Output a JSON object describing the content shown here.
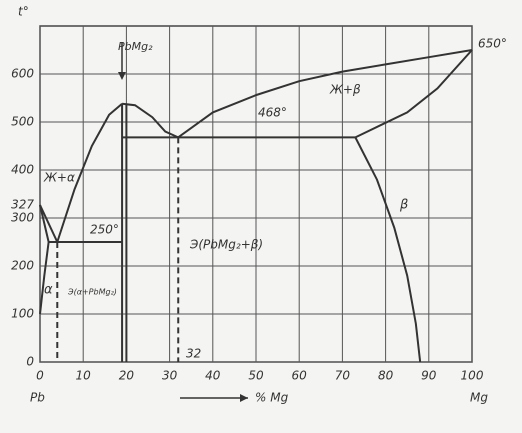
{
  "chart_data": {
    "type": "line",
    "y_label": "t°",
    "x_label": "% Mg",
    "left_element": "Pb",
    "right_element": "Mg",
    "xlim": [
      0,
      100
    ],
    "ylim": [
      0,
      700
    ],
    "xticks": [
      0,
      10,
      20,
      30,
      40,
      50,
      60,
      70,
      80,
      90,
      100
    ],
    "yticks": [
      0,
      100,
      200,
      300,
      327,
      400,
      500,
      600
    ],
    "grid": true,
    "color": "#333333",
    "lines": [
      {
        "x": [
          0,
          4
        ],
        "values": [
          327,
          250
        ]
      },
      {
        "x": [
          0,
          2
        ],
        "values": [
          327,
          250
        ]
      },
      {
        "x": [
          2,
          1,
          0
        ],
        "values": [
          250,
          180,
          100
        ]
      },
      {
        "x": [
          4,
          8,
          12,
          16,
          19
        ],
        "values": [
          250,
          360,
          450,
          515,
          538
        ]
      },
      {
        "x": [
          19,
          22,
          26,
          29,
          32
        ],
        "values": [
          538,
          535,
          510,
          480,
          468
        ]
      },
      {
        "x": [
          32,
          40,
          50,
          60,
          70,
          80,
          90,
          100
        ],
        "values": [
          468,
          520,
          556,
          585,
          605,
          620,
          635,
          650
        ]
      },
      {
        "x": [
          2,
          19
        ],
        "values": [
          250,
          250
        ]
      },
      {
        "x": [
          19,
          73
        ],
        "values": [
          468,
          468
        ]
      },
      {
        "x": [
          73,
          85,
          92,
          100
        ],
        "values": [
          468,
          520,
          570,
          650
        ]
      },
      {
        "x": [
          73,
          78,
          82,
          85,
          87,
          88
        ],
        "values": [
          468,
          380,
          280,
          180,
          80,
          0
        ]
      },
      {
        "x": [
          19,
          19
        ],
        "values": [
          0,
          538
        ]
      },
      {
        "x": [
          20,
          20
        ],
        "values": [
          0,
          538
        ]
      },
      {
        "x": [
          32,
          32
        ],
        "values": [
          468,
          0
        ],
        "dashed": true
      },
      {
        "x": [
          4,
          4
        ],
        "values": [
          250,
          0
        ],
        "dashed": true
      }
    ],
    "annotations": [
      "PbMg₂",
      "Ж+α",
      "250°",
      "468°",
      "Ж+β",
      "β",
      "Э(PbMg₂+β)",
      "α",
      "Э(α+PbMg₂)",
      "650°",
      "32"
    ]
  }
}
